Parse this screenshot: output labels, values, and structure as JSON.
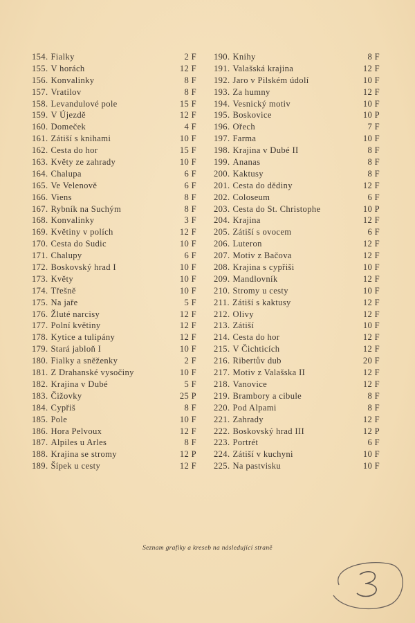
{
  "left_column": [
    [
      "154.",
      "Fialky",
      "2 F"
    ],
    [
      "155.",
      "V horách",
      "12 F"
    ],
    [
      "156.",
      "Konvalinky",
      "8 F"
    ],
    [
      "157.",
      "Vratilov",
      "8 F"
    ],
    [
      "158.",
      "Levandulové pole",
      "15 F"
    ],
    [
      "159.",
      "V Újezdě",
      "12 F"
    ],
    [
      "160.",
      "Domeček",
      "4 F"
    ],
    [
      "161.",
      "Zátiší s knihami",
      "10 F"
    ],
    [
      "162.",
      "Cesta do hor",
      "15 F"
    ],
    [
      "163.",
      "Květy ze zahrady",
      "10 F"
    ],
    [
      "164.",
      "Chalupa",
      "6 F"
    ],
    [
      "165.",
      "Ve Velenově",
      "6 F"
    ],
    [
      "166.",
      "Viens",
      "8 F"
    ],
    [
      "167.",
      "Rybník na Suchým",
      "8 F"
    ],
    [
      "168.",
      "Konvalinky",
      "3 F"
    ],
    [
      "169.",
      "Květiny v polích",
      "12 F"
    ],
    [
      "170.",
      "Cesta do Sudic",
      "10 F"
    ],
    [
      "171.",
      "Chalupy",
      "6 F"
    ],
    [
      "172.",
      "Boskovský hrad I",
      "10 F"
    ],
    [
      "173.",
      "Květy",
      "10 F"
    ],
    [
      "174.",
      "Třešně",
      "10 F"
    ],
    [
      "175.",
      "Na jaře",
      "5 F"
    ],
    [
      "176.",
      "Žluté narcisy",
      "12 F"
    ],
    [
      "177.",
      "Polní květiny",
      "12 F"
    ],
    [
      "178.",
      "Kytice a tulipány",
      "12 F"
    ],
    [
      "179.",
      "Stará jabloň I",
      "10 F"
    ],
    [
      "180.",
      "Fialky a sněženky",
      "2 F"
    ],
    [
      "181.",
      "Z Drahanské vysočiny",
      "10 F"
    ],
    [
      "182.",
      "Krajina v Dubé",
      "5 F"
    ],
    [
      "183.",
      "Čižovky",
      "25 P"
    ],
    [
      "184.",
      "Cypřiš",
      "8 F"
    ],
    [
      "185.",
      "Pole",
      "10 F"
    ],
    [
      "186.",
      "Hora Pelvoux",
      "12 F"
    ],
    [
      "187.",
      "Alpiles u Arles",
      "8 F"
    ],
    [
      "188.",
      "Krajina se stromy",
      "12 P"
    ],
    [
      "189.",
      "Šípek u cesty",
      "12 F"
    ]
  ],
  "right_column": [
    [
      "190.",
      "Knihy",
      "8 F"
    ],
    [
      "191.",
      "Valašská krajina",
      "12 F"
    ],
    [
      "192.",
      "Jaro v Pilském údolí",
      "10 F"
    ],
    [
      "193.",
      "Za humny",
      "12 F"
    ],
    [
      "194.",
      "Vesnický motiv",
      "10 F"
    ],
    [
      "195.",
      "Boskovice",
      "10 P"
    ],
    [
      "196.",
      "Ořech",
      "7 F"
    ],
    [
      "197.",
      "Farma",
      "10 F"
    ],
    [
      "198.",
      "Krajina v Dubé II",
      "8 F"
    ],
    [
      "199.",
      "Ananas",
      "8 F"
    ],
    [
      "200.",
      "Kaktusy",
      "8 F"
    ],
    [
      "201.",
      "Cesta do dědiny",
      "12 F"
    ],
    [
      "202.",
      "Coloseum",
      "6 F"
    ],
    [
      "203.",
      "Cesta do St. Christophe",
      "10 P"
    ],
    [
      "204.",
      "Krajina",
      "12 F"
    ],
    [
      "205.",
      "Zátiší s ovocem",
      "6 F"
    ],
    [
      "206.",
      "Luteron",
      "12 F"
    ],
    [
      "207.",
      "Motiv z Bačova",
      "12 F"
    ],
    [
      "208.",
      "Krajina s cypřiši",
      "10 F"
    ],
    [
      "209.",
      "Mandlovník",
      "12 F"
    ],
    [
      "210.",
      "Stromy u cesty",
      "10 F"
    ],
    [
      "211.",
      "Zátiší s kaktusy",
      "12 F"
    ],
    [
      "212.",
      "Olivy",
      "12 F"
    ],
    [
      "213.",
      "Zátiší",
      "10 F"
    ],
    [
      "214.",
      "Cesta do hor",
      "12 F"
    ],
    [
      "215.",
      "V Čichticích",
      "12 F"
    ],
    [
      "216.",
      "Ribertův dub",
      "20 F"
    ],
    [
      "217.",
      "Motiv z Valašska II",
      "12 F"
    ],
    [
      "218.",
      "Vanovice",
      "12 F"
    ],
    [
      "219.",
      "Brambory a cibule",
      "8 F"
    ],
    [
      "220.",
      "Pod Alpami",
      "8 F"
    ],
    [
      "221.",
      "Zahrady",
      "12 F"
    ],
    [
      "222.",
      "Boskovský hrad III",
      "12 P"
    ],
    [
      "223.",
      "Portrét",
      "6 F"
    ],
    [
      "224.",
      "Zátiší v kuchyni",
      "10 F"
    ],
    [
      "225.",
      "Na pastvisku",
      "10 F"
    ]
  ],
  "footer_note": "Seznam grafiky a kreseb na následující straně",
  "page_mark": "3",
  "colors": {
    "paper": "#f4e0bb",
    "ink": "#3d3631"
  }
}
